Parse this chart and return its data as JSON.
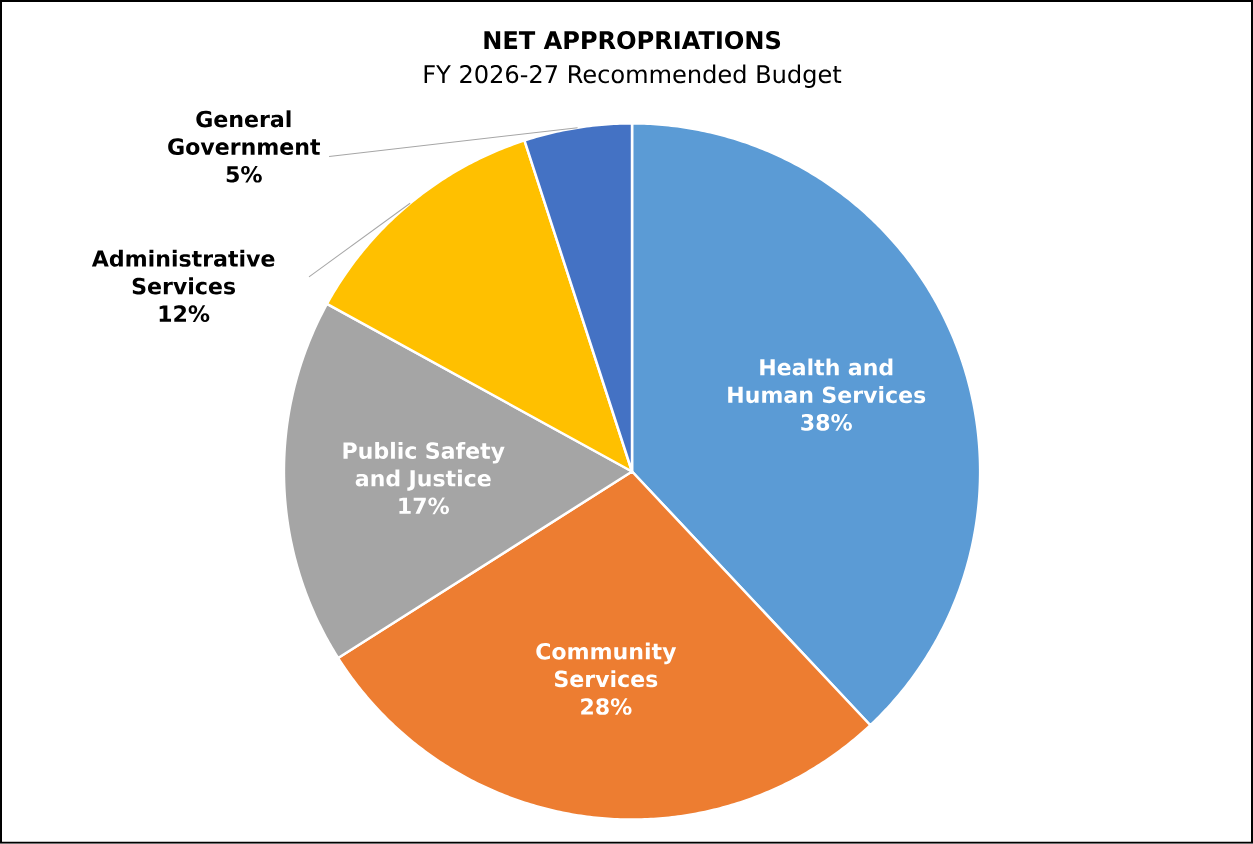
{
  "chart_data": {
    "type": "pie",
    "title": "NET APPROPRIATIONS",
    "subtitle": "FY 2026-27 Recommended Budget",
    "categories": [
      "Health and Human Services",
      "Community Services",
      "Public Safety and Justice",
      "Administrative Services",
      "General Government"
    ],
    "values": [
      38,
      28,
      17,
      12,
      5
    ],
    "value_labels": [
      "38%",
      "28%",
      "17%",
      "12%",
      "5%"
    ],
    "colors": [
      "#5b9bd5",
      "#ed7d31",
      "#a5a5a5",
      "#ffc000",
      "#4472c4"
    ]
  }
}
